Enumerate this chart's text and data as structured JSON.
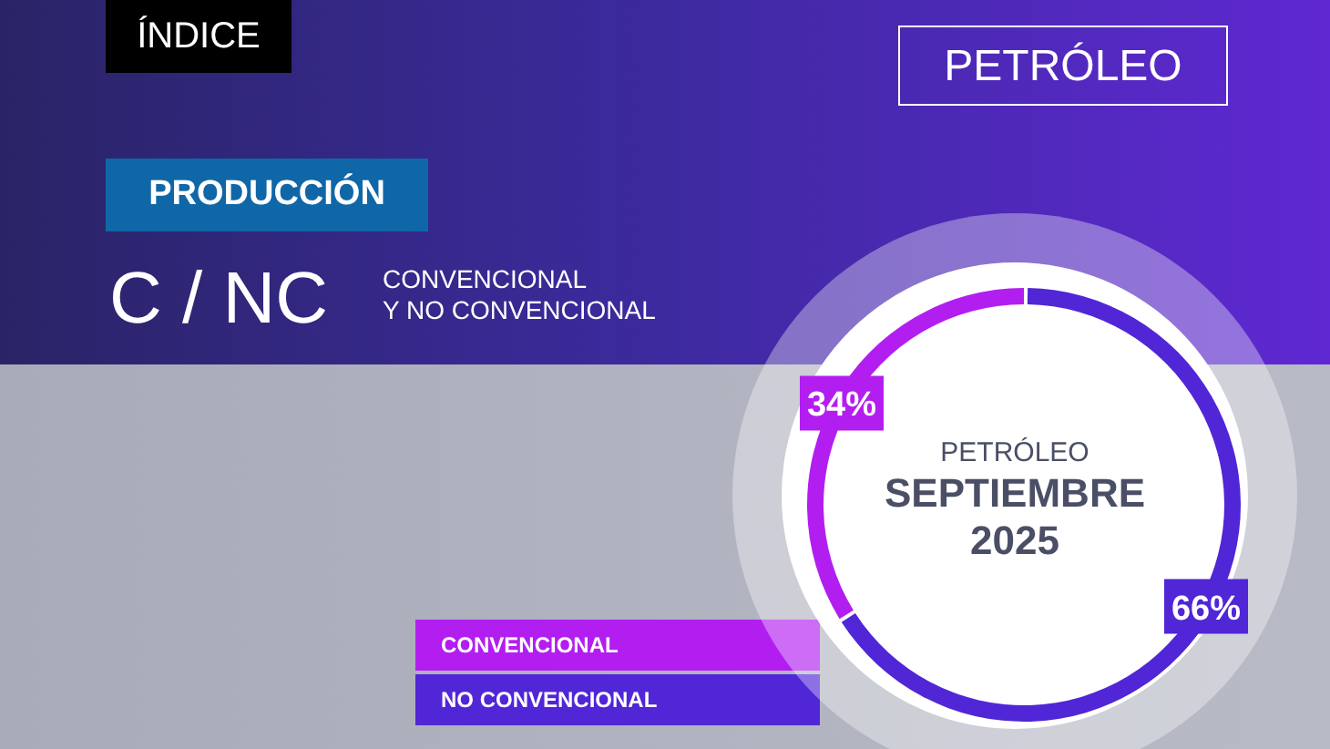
{
  "chart_data": {
    "type": "donut",
    "title": "C / NC",
    "subtitle": "CONVENCIONAL\nY NO CONVENCIONAL",
    "annotations": [
      "ÍNDICE",
      "PETRÓLEO",
      "PRODUCCIÓN",
      "PETRÓLEO",
      "SEPTIEMBRE",
      "2025"
    ],
    "categories": [
      "CONVENCIONAL",
      "NO CONVENCIONAL"
    ],
    "values": [
      34,
      66
    ],
    "colors": [
      "#b31ef0",
      "#5026d6"
    ],
    "value_labels": [
      "34%",
      "66%"
    ],
    "legend": "bottom left"
  }
}
